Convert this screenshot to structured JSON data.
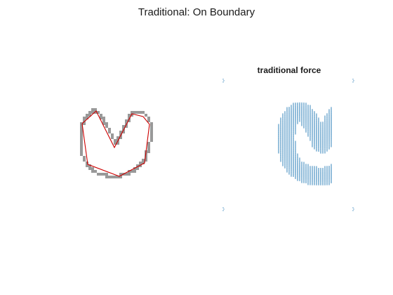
{
  "figure": {
    "title": "Traditional: On Boundary"
  },
  "left_panel": {
    "boundary_color": "#999999",
    "polygon_color": "#cc0000"
  },
  "right_panel": {
    "title": "traditional force",
    "arrow_color": "#1f77b4"
  }
}
